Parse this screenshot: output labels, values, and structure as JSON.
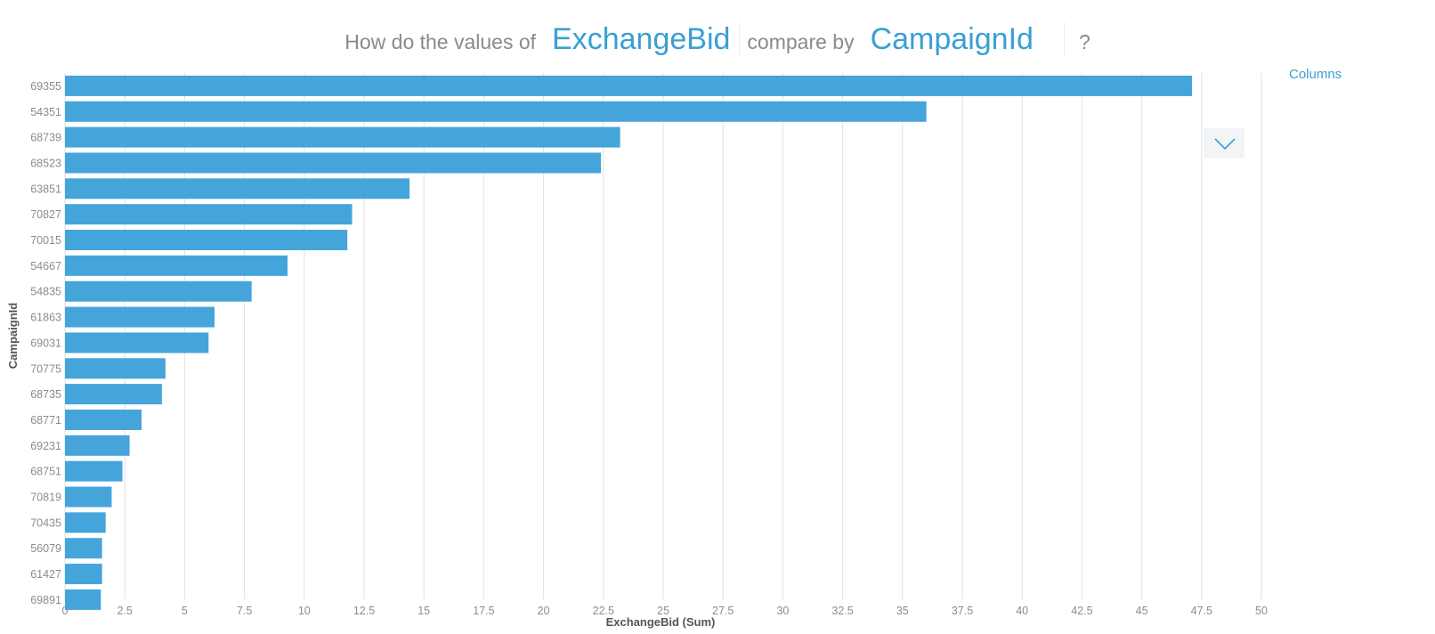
{
  "question": {
    "prefix": "How do the values of",
    "measure": "ExchangeBid",
    "middle": "compare by",
    "dimension": "CampaignId",
    "suffix": "?"
  },
  "controls": {
    "columns_label": "Columns",
    "dropdown_icon": "chevron-down-icon"
  },
  "colors": {
    "bar": "#45a5da",
    "accent": "#3a9fd3",
    "grid": "#e2e2e2"
  },
  "chart_data": {
    "type": "bar",
    "orientation": "horizontal",
    "title": "",
    "xlabel": "ExchangeBid (Sum)",
    "ylabel": "CampaignId",
    "xlim": [
      0,
      50
    ],
    "x_ticks": [
      "0",
      "2.5",
      "5",
      "7.5",
      "10",
      "12.5",
      "15",
      "17.5",
      "20",
      "22.5",
      "25",
      "27.5",
      "30",
      "32.5",
      "35",
      "37.5",
      "40",
      "42.5",
      "45",
      "47.5",
      "50"
    ],
    "grid": true,
    "categories": [
      "69355",
      "54351",
      "68739",
      "68523",
      "63851",
      "70827",
      "70015",
      "54667",
      "54835",
      "61863",
      "69031",
      "70775",
      "68735",
      "68771",
      "69231",
      "68751",
      "70819",
      "70435",
      "56079",
      "61427",
      "69891"
    ],
    "values": [
      47.1,
      36.0,
      23.2,
      22.4,
      14.4,
      12.0,
      11.8,
      9.3,
      7.8,
      6.25,
      6.0,
      4.2,
      4.05,
      3.2,
      2.7,
      2.4,
      1.95,
      1.7,
      1.55,
      1.55,
      1.5
    ]
  }
}
